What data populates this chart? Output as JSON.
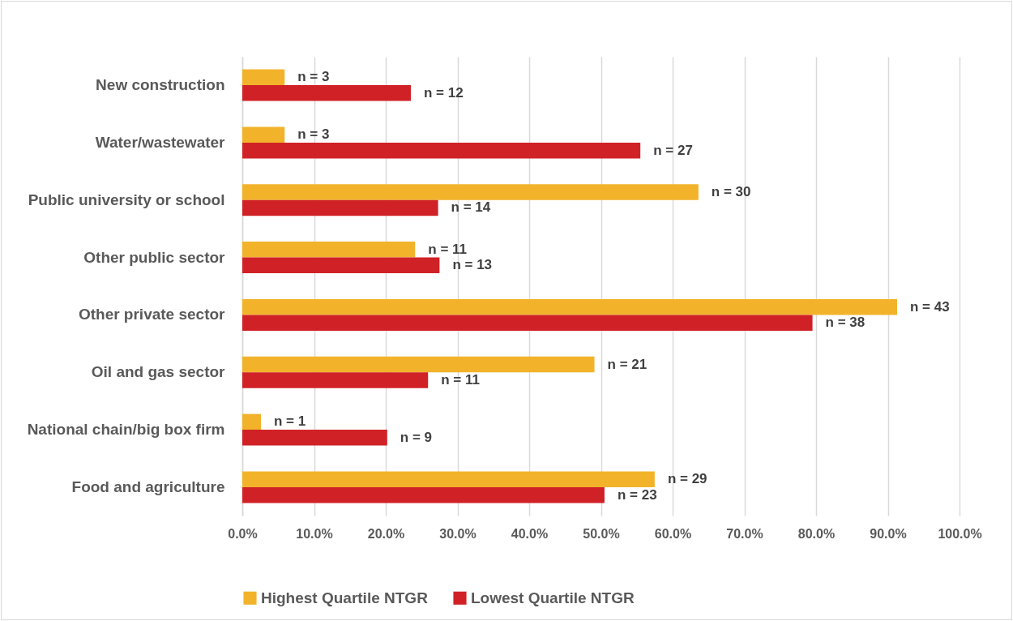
{
  "chart_data": {
    "type": "bar",
    "orientation": "horizontal",
    "categories": [
      "New construction",
      "Water/wastewater",
      "Public university or school",
      "Other public sector",
      "Other private sector",
      "Oil and gas sector",
      "National chain/big box firm",
      "Food and agriculture"
    ],
    "series": [
      {
        "name": "Highest Quartile NTGR",
        "color": "#f2b32b",
        "values": [
          5.9,
          5.9,
          63.6,
          24.1,
          91.3,
          49.1,
          2.6,
          57.5
        ]
      },
      {
        "name": "Lowest Quartile NTGR",
        "color": "#d02126",
        "values": [
          23.5,
          55.5,
          27.3,
          27.5,
          79.5,
          25.9,
          20.2,
          50.5
        ]
      }
    ],
    "annotations": [
      {
        "text": "n = 3",
        "x": 5.9,
        "y": "New construction"
      },
      {
        "text": "n = 12",
        "x": 23.5,
        "y": "New construction"
      },
      {
        "text": "n = 3",
        "x": 5.9,
        "y": "Water/wastewater"
      },
      {
        "text": "n = 27",
        "x": 55.5,
        "y": "Water/wastewater"
      },
      {
        "text": "n = 30",
        "x": 63.6,
        "y": "Public university or school"
      },
      {
        "text": "n = 14",
        "x": 27.3,
        "y": "Public university or school"
      },
      {
        "text": "n = 11",
        "x": 24.1,
        "y": "Other public sector"
      },
      {
        "text": "n = 13",
        "x": 27.5,
        "y": "Other public sector"
      },
      {
        "text": "n = 43",
        "x": 91.3,
        "y": "Other private sector"
      },
      {
        "text": "n = 38",
        "x": 79.5,
        "y": "Other private sector"
      },
      {
        "text": "n = 21",
        "x": 49.1,
        "y": "Oil and gas sector"
      },
      {
        "text": "n = 11",
        "x": 25.9,
        "y": "Oil and gas sector"
      },
      {
        "text": "n = 1",
        "x": 2.6,
        "y": "National chain/big box firm"
      },
      {
        "text": "n = 9",
        "x": 20.2,
        "y": "National chain/big box firm"
      },
      {
        "text": "n = 29",
        "x": 57.5,
        "y": "Food and agriculture"
      },
      {
        "text": "n = 23",
        "x": 50.5,
        "y": "Food and agriculture"
      }
    ],
    "xlim": [
      0,
      100
    ],
    "xticks": [
      {
        "value": 0,
        "label": "0.0%"
      },
      {
        "value": 10,
        "label": "10.0%"
      },
      {
        "value": 20,
        "label": "20.0%"
      },
      {
        "value": 30,
        "label": "30.0%"
      },
      {
        "value": 40,
        "label": "40.0%"
      },
      {
        "value": 50,
        "label": "50.0%"
      },
      {
        "value": 60,
        "label": "60.0%"
      },
      {
        "value": 70,
        "label": "70.0%"
      },
      {
        "value": 80,
        "label": "80.0%"
      },
      {
        "value": 90,
        "label": "90.0%"
      },
      {
        "value": 100,
        "label": "100.0%"
      }
    ],
    "grid": "x",
    "legend": "bottom"
  }
}
